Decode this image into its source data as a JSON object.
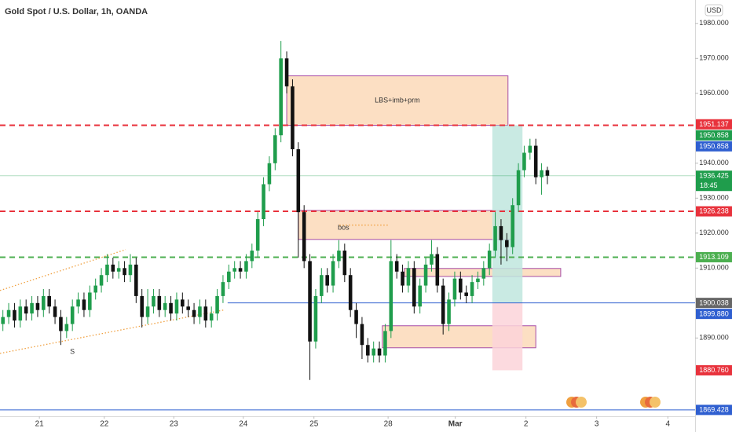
{
  "chart_data": {
    "type": "candlestick",
    "title": "Gold Spot / U.S. Dollar, 1h, OANDA",
    "currency": "USD",
    "countdown": "18:45",
    "up_color": "#1f9d4c",
    "down_color": "#111111",
    "grid": false,
    "xlim": [
      0,
      120
    ],
    "ylim": [
      1867.6,
      1986.7
    ],
    "xticks": [
      {
        "value": 6.8,
        "label": "21"
      },
      {
        "value": 18,
        "label": "22"
      },
      {
        "value": 30,
        "label": "23"
      },
      {
        "value": 42,
        "label": "24"
      },
      {
        "value": 54.2,
        "label": "25"
      },
      {
        "value": 67,
        "label": "28"
      },
      {
        "value": 78.6,
        "label": "Mar"
      },
      {
        "value": 90.8,
        "label": "2"
      },
      {
        "value": 103,
        "label": "3"
      },
      {
        "value": 115.3,
        "label": "4"
      }
    ],
    "yticks": [
      {
        "value": 1890,
        "label": "1890.000"
      },
      {
        "value": 1910,
        "label": "1910.000"
      },
      {
        "value": 1920,
        "label": "1920.000"
      },
      {
        "value": 1930,
        "label": "1930.000"
      },
      {
        "value": 1940,
        "label": "1940.000"
      },
      {
        "value": 1960,
        "label": "1960.000"
      },
      {
        "value": 1970,
        "label": "1970.000"
      },
      {
        "value": 1980,
        "label": "1980.000"
      }
    ],
    "open": [
      1894,
      1896,
      1898,
      1895,
      1899,
      1897,
      1900,
      1898,
      1902,
      1899,
      1896,
      1892,
      1894,
      1899,
      1901,
      1898,
      1903,
      1905,
      1908,
      1911,
      1909,
      1910,
      1908,
      1911,
      1902,
      1896,
      1899,
      1902,
      1898,
      1900,
      1897,
      1901,
      1899,
      1898,
      1896,
      1899,
      1895,
      1897,
      1902,
      1906,
      1909,
      1910,
      1909,
      1912,
      1915,
      1924,
      1934,
      1940,
      1948,
      1970,
      1962,
      1944,
      1926,
      1912,
      1889,
      1902,
      1908,
      1905,
      1912,
      1915,
      1908,
      1898,
      1894,
      1888,
      1885,
      1887,
      1885,
      1892,
      1912,
      1909,
      1905,
      1910,
      1899,
      1905,
      1911,
      1914,
      1905,
      1894,
      1901,
      1907,
      1903,
      1902,
      1906,
      1907,
      1910,
      1915,
      1922,
      1918,
      1916,
      1928,
      1938,
      1943,
      1945,
      1936,
      1938
    ],
    "high": [
      1898,
      1900,
      1900,
      1901,
      1901,
      1902,
      1902,
      1904,
      1904,
      1901,
      1898,
      1896,
      1901,
      1903,
      1903,
      1905,
      1907,
      1910,
      1914,
      1913,
      1912,
      1912,
      1914,
      1913,
      1904,
      1904,
      1904,
      1904,
      1902,
      1902,
      1903,
      1903,
      1901,
      1900,
      1901,
      1901,
      1899,
      1904,
      1908,
      1911,
      1912,
      1912,
      1914,
      1917,
      1926,
      1936,
      1942,
      1950,
      1975,
      1972,
      1964,
      1946,
      1928,
      1914,
      1904,
      1910,
      1910,
      1914,
      1918,
      1917,
      1910,
      1900,
      1896,
      1890,
      1889,
      1889,
      1894,
      1918,
      1914,
      1911,
      1912,
      1912,
      1907,
      1913,
      1918,
      1916,
      1907,
      1903,
      1909,
      1909,
      1905,
      1908,
      1909,
      1912,
      1917,
      1926,
      1924,
      1920,
      1930,
      1940,
      1945,
      1947,
      1947,
      1940,
      1939
    ],
    "low": [
      1892,
      1894,
      1893,
      1893,
      1895,
      1895,
      1896,
      1896,
      1897,
      1894,
      1888,
      1890,
      1892,
      1897,
      1896,
      1896,
      1901,
      1903,
      1906,
      1907,
      1907,
      1906,
      1906,
      1900,
      1893,
      1894,
      1897,
      1896,
      1896,
      1895,
      1895,
      1897,
      1896,
      1894,
      1894,
      1893,
      1893,
      1895,
      1900,
      1904,
      1907,
      1907,
      1907,
      1910,
      1913,
      1922,
      1932,
      1938,
      1946,
      1960,
      1942,
      1913,
      1910,
      1878,
      1887,
      1900,
      1903,
      1903,
      1910,
      1906,
      1896,
      1890,
      1884,
      1883,
      1883,
      1883,
      1883,
      1890,
      1907,
      1903,
      1903,
      1897,
      1897,
      1903,
      1909,
      1903,
      1891,
      1892,
      1899,
      1901,
      1900,
      1900,
      1904,
      1905,
      1908,
      1913,
      1911,
      1912,
      1914,
      1926,
      1936,
      1941,
      1934,
      1931,
      1934
    ],
    "close": [
      1896,
      1898,
      1895,
      1899,
      1897,
      1900,
      1898,
      1902,
      1899,
      1896,
      1892,
      1894,
      1899,
      1901,
      1898,
      1903,
      1905,
      1908,
      1911,
      1909,
      1910,
      1908,
      1911,
      1902,
      1896,
      1899,
      1902,
      1898,
      1900,
      1897,
      1901,
      1899,
      1898,
      1896,
      1899,
      1895,
      1897,
      1902,
      1906,
      1909,
      1910,
      1909,
      1912,
      1915,
      1924,
      1934,
      1940,
      1948,
      1970,
      1962,
      1944,
      1926,
      1912,
      1889,
      1902,
      1908,
      1905,
      1912,
      1915,
      1908,
      1898,
      1894,
      1888,
      1885,
      1887,
      1885,
      1892,
      1912,
      1909,
      1905,
      1910,
      1899,
      1905,
      1911,
      1914,
      1905,
      1894,
      1901,
      1907,
      1903,
      1902,
      1906,
      1907,
      1910,
      1915,
      1922,
      1918,
      1916,
      1928,
      1938,
      1943,
      1945,
      1936,
      1938,
      1936.425
    ],
    "zones": [
      {
        "x": [
          49.5,
          87.7
        ],
        "y": [
          1965,
          1950.858
        ],
        "color": "#fbd9b8",
        "border": "#a64ca6",
        "label": "LBS+imb+prm"
      },
      {
        "x": [
          51.5,
          88.8
        ],
        "y": [
          1926.5,
          1918.2
        ],
        "color": "#fbd9b8",
        "border": "#a64ca6",
        "label": "bos"
      },
      {
        "x": [
          69.8,
          96.8
        ],
        "y": [
          1909.9,
          1907.6
        ],
        "color": "#fbd9b8",
        "border": "#a64ca6"
      },
      {
        "x": [
          66,
          92.5
        ],
        "y": [
          1893.5,
          1887.2
        ],
        "color": "#fbd9b8",
        "border": "#a64ca6"
      },
      {
        "x": [
          85,
          90.2
        ],
        "y": [
          1950.858,
          1900.038
        ],
        "color": "#bfe6de"
      },
      {
        "x": [
          85,
          90.2
        ],
        "y": [
          1900.038,
          1880.76
        ],
        "color": "#fbd3d9"
      }
    ],
    "hlines": [
      {
        "value": 1950.858,
        "color": "#e8323c",
        "style": "dashed"
      },
      {
        "value": 1926.238,
        "color": "#e8323c",
        "style": "dashed"
      },
      {
        "value": 1913.109,
        "color": "#4caf50",
        "style": "dashed"
      },
      {
        "value": 1900.038,
        "color": "#2f5fd0",
        "style": "solid",
        "from": 39.3
      },
      {
        "value": 1869.428,
        "color": "#2f5fd0",
        "style": "solid"
      }
    ],
    "segments": [
      {
        "x": [
          0,
          21.7
        ],
        "y": [
          1903.6,
          1915.3
        ],
        "color": "#f0a040"
      },
      {
        "x": [
          0,
          38.6
        ],
        "y": [
          1885.6,
          1898
        ],
        "color": "#f0a040"
      },
      {
        "x": [
          58.6,
          67.1
        ],
        "y": [
          1922.3,
          1922.3
        ],
        "color": "#f0a040"
      }
    ],
    "marker": {
      "x": 12.5,
      "y": 1886,
      "label": "S"
    },
    "price_labels": [
      {
        "value": 1951.137,
        "label": "1951.137",
        "color": "#e8323c"
      },
      {
        "value": 1950.858,
        "label": "1950.858",
        "color": "#1f9d4c"
      },
      {
        "value": 1950.858,
        "label": "1950.858",
        "color": "#2f5fd0"
      },
      {
        "value": 1936.425,
        "label": "1936.425",
        "color": "#1f9d4c"
      },
      {
        "value": 1926.238,
        "label": "1926.238",
        "color": "#e8323c"
      },
      {
        "value": 1913.109,
        "label": "1913.109",
        "color": "#4caf50"
      },
      {
        "value": 1900.038,
        "label": "1900.038",
        "color": "#666666"
      },
      {
        "value": 1899.88,
        "label": "1899.880",
        "color": "#2f5fd0"
      },
      {
        "value": 1880.76,
        "label": "1880.760",
        "color": "#e8323c"
      },
      {
        "value": 1869.428,
        "label": "1869.428",
        "color": "#2f5fd0"
      }
    ]
  }
}
